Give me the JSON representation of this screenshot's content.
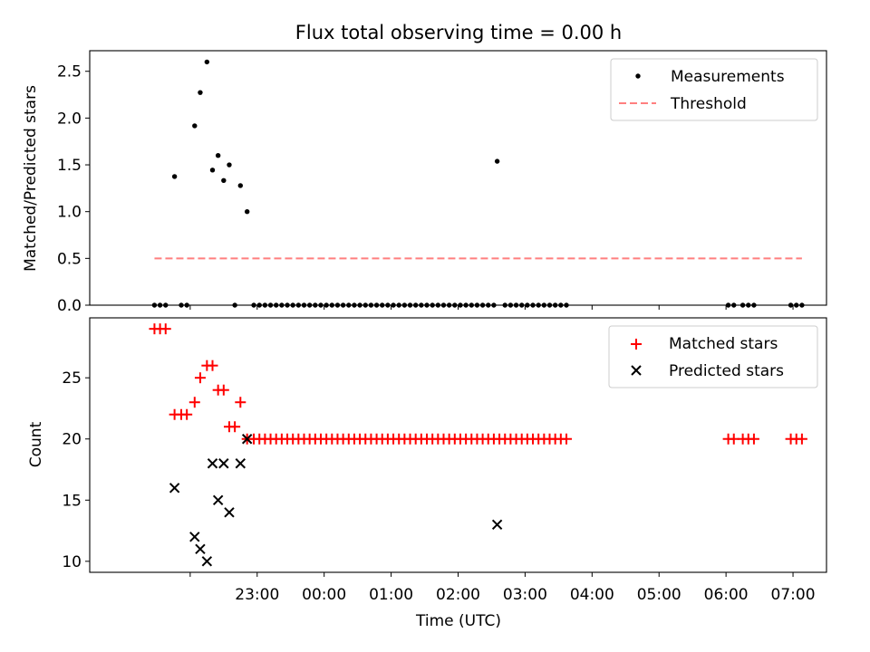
{
  "title": "Flux total observing time = 0.00 h",
  "chart_data": [
    {
      "type": "scatter",
      "panel": "top",
      "ylabel": "Matched/Predicted stars",
      "ylim": [
        0,
        2.72
      ],
      "xlim": [
        -90,
        570
      ],
      "yticks": [
        0.0,
        0.5,
        1.0,
        1.5,
        2.0,
        2.5
      ],
      "ytick_labels": [
        "0.0",
        "0.5",
        "1.0",
        "1.5",
        "2.0",
        "2.5"
      ],
      "grid": false,
      "legend_location": "upper right",
      "series": [
        {
          "name": "Measurements",
          "kind": "scatter",
          "color": "#000000",
          "points": [
            [
              -32,
              0
            ],
            [
              -27,
              0
            ],
            [
              -22,
              0
            ],
            [
              -14,
              1.375
            ],
            [
              -8,
              0
            ],
            [
              -3,
              0
            ],
            [
              4,
              1.917
            ],
            [
              9,
              2.273
            ],
            [
              15,
              2.6
            ],
            [
              20,
              1.444
            ],
            [
              25,
              1.6
            ],
            [
              30,
              1.333
            ],
            [
              35,
              1.5
            ],
            [
              40,
              0
            ],
            [
              45,
              1.278
            ],
            [
              51,
              1.0
            ],
            [
              57,
              0
            ],
            [
              62,
              0
            ],
            [
              67,
              0
            ],
            [
              72,
              0
            ],
            [
              77,
              0
            ],
            [
              82,
              0
            ],
            [
              87,
              0
            ],
            [
              92,
              0
            ],
            [
              97,
              0
            ],
            [
              102,
              0
            ],
            [
              107,
              0
            ],
            [
              112,
              0
            ],
            [
              117,
              0
            ],
            [
              122,
              0
            ],
            [
              127,
              0
            ],
            [
              132,
              0
            ],
            [
              137,
              0
            ],
            [
              142,
              0
            ],
            [
              147,
              0
            ],
            [
              152,
              0
            ],
            [
              157,
              0
            ],
            [
              162,
              0
            ],
            [
              167,
              0
            ],
            [
              172,
              0
            ],
            [
              177,
              0
            ],
            [
              182,
              0
            ],
            [
              187,
              0
            ],
            [
              192,
              0
            ],
            [
              197,
              0
            ],
            [
              202,
              0
            ],
            [
              207,
              0
            ],
            [
              212,
              0
            ],
            [
              217,
              0
            ],
            [
              222,
              0
            ],
            [
              227,
              0
            ],
            [
              232,
              0
            ],
            [
              237,
              0
            ],
            [
              242,
              0
            ],
            [
              247,
              0
            ],
            [
              252,
              0
            ],
            [
              257,
              0
            ],
            [
              262,
              0
            ],
            [
              267,
              0
            ],
            [
              272,
              0
            ],
            [
              275,
              1.538
            ],
            [
              282,
              0
            ],
            [
              287,
              0
            ],
            [
              292,
              0
            ],
            [
              297,
              0
            ],
            [
              302,
              0
            ],
            [
              307,
              0
            ],
            [
              312,
              0
            ],
            [
              317,
              0
            ],
            [
              322,
              0
            ],
            [
              327,
              0
            ],
            [
              332,
              0
            ],
            [
              337,
              0
            ],
            [
              482,
              0
            ],
            [
              487,
              0
            ],
            [
              495,
              0
            ],
            [
              500,
              0
            ],
            [
              505,
              0
            ],
            [
              538,
              0
            ],
            [
              543,
              0
            ],
            [
              548,
              0
            ]
          ]
        },
        {
          "name": "Threshold",
          "kind": "line",
          "style": "dashed",
          "color": "#ff7f7f",
          "x": [
            -32,
            548
          ],
          "y": [
            0.5,
            0.5
          ]
        }
      ]
    },
    {
      "type": "scatter",
      "panel": "bottom",
      "ylabel": "Count",
      "xlabel": "Time (UTC)",
      "ylim": [
        9.1,
        29.9
      ],
      "xlim": [
        -90,
        570
      ],
      "yticks": [
        10,
        15,
        20,
        25
      ],
      "ytick_labels": [
        "10",
        "15",
        "20",
        "25"
      ],
      "xticks": [
        0,
        60,
        120,
        180,
        240,
        300,
        360,
        420,
        480,
        540
      ],
      "xtick_labels": [
        "23:00",
        "00:00",
        "01:00",
        "02:00",
        "03:00",
        "04:00",
        "05:00",
        "06:00",
        "07:00"
      ],
      "xtick_label_offset": 1,
      "grid": false,
      "legend_location": "upper right",
      "series": [
        {
          "name": "Matched stars",
          "marker": "+",
          "color": "#ff0000",
          "points": [
            [
              -32,
              29
            ],
            [
              -27,
              29
            ],
            [
              -22,
              29
            ],
            [
              -14,
              22
            ],
            [
              -8,
              22
            ],
            [
              -3,
              22
            ],
            [
              4,
              23
            ],
            [
              9,
              25
            ],
            [
              15,
              26
            ],
            [
              20,
              26
            ],
            [
              25,
              24
            ],
            [
              30,
              24
            ],
            [
              35,
              21
            ],
            [
              40,
              21
            ],
            [
              45,
              23
            ],
            [
              51,
              20
            ],
            [
              57,
              20
            ],
            [
              62,
              20
            ],
            [
              67,
              20
            ],
            [
              72,
              20
            ],
            [
              77,
              20
            ],
            [
              82,
              20
            ],
            [
              87,
              20
            ],
            [
              92,
              20
            ],
            [
              97,
              20
            ],
            [
              102,
              20
            ],
            [
              107,
              20
            ],
            [
              112,
              20
            ],
            [
              117,
              20
            ],
            [
              122,
              20
            ],
            [
              127,
              20
            ],
            [
              132,
              20
            ],
            [
              137,
              20
            ],
            [
              142,
              20
            ],
            [
              147,
              20
            ],
            [
              152,
              20
            ],
            [
              157,
              20
            ],
            [
              162,
              20
            ],
            [
              167,
              20
            ],
            [
              172,
              20
            ],
            [
              177,
              20
            ],
            [
              182,
              20
            ],
            [
              187,
              20
            ],
            [
              192,
              20
            ],
            [
              197,
              20
            ],
            [
              202,
              20
            ],
            [
              207,
              20
            ],
            [
              212,
              20
            ],
            [
              217,
              20
            ],
            [
              222,
              20
            ],
            [
              227,
              20
            ],
            [
              232,
              20
            ],
            [
              237,
              20
            ],
            [
              242,
              20
            ],
            [
              247,
              20
            ],
            [
              252,
              20
            ],
            [
              257,
              20
            ],
            [
              262,
              20
            ],
            [
              267,
              20
            ],
            [
              272,
              20
            ],
            [
              277,
              20
            ],
            [
              282,
              20
            ],
            [
              287,
              20
            ],
            [
              292,
              20
            ],
            [
              297,
              20
            ],
            [
              302,
              20
            ],
            [
              307,
              20
            ],
            [
              312,
              20
            ],
            [
              317,
              20
            ],
            [
              322,
              20
            ],
            [
              327,
              20
            ],
            [
              332,
              20
            ],
            [
              337,
              20
            ],
            [
              482,
              20
            ],
            [
              487,
              20
            ],
            [
              495,
              20
            ],
            [
              500,
              20
            ],
            [
              505,
              20
            ],
            [
              538,
              20
            ],
            [
              543,
              20
            ],
            [
              548,
              20
            ]
          ]
        },
        {
          "name": "Predicted stars",
          "marker": "x",
          "color": "#000000",
          "points": [
            [
              -14,
              16
            ],
            [
              4,
              12
            ],
            [
              9,
              11
            ],
            [
              15,
              10
            ],
            [
              20,
              18
            ],
            [
              25,
              15
            ],
            [
              30,
              18
            ],
            [
              35,
              14
            ],
            [
              45,
              18
            ],
            [
              51,
              20
            ],
            [
              275,
              13
            ]
          ]
        }
      ]
    }
  ]
}
